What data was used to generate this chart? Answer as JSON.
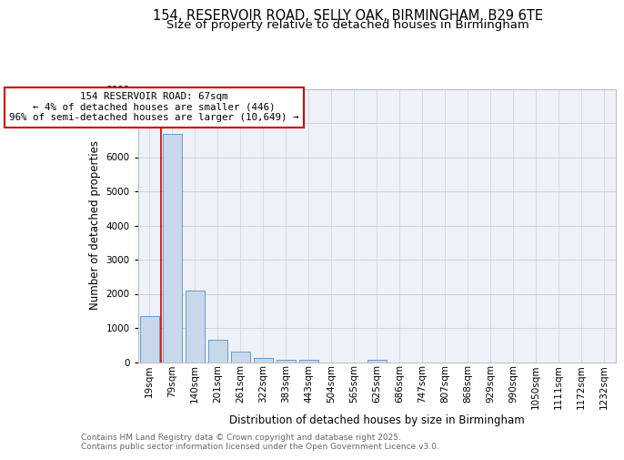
{
  "title1": "154, RESERVOIR ROAD, SELLY OAK, BIRMINGHAM, B29 6TE",
  "title2": "Size of property relative to detached houses in Birmingham",
  "xlabel": "Distribution of detached houses by size in Birmingham",
  "ylabel": "Number of detached properties",
  "bar_labels": [
    "19sqm",
    "79sqm",
    "140sqm",
    "201sqm",
    "261sqm",
    "322sqm",
    "383sqm",
    "443sqm",
    "504sqm",
    "565sqm",
    "625sqm",
    "686sqm",
    "747sqm",
    "807sqm",
    "868sqm",
    "929sqm",
    "990sqm",
    "1050sqm",
    "1111sqm",
    "1172sqm",
    "1232sqm"
  ],
  "bar_values": [
    1350,
    6680,
    2100,
    650,
    300,
    130,
    80,
    70,
    0,
    0,
    70,
    0,
    0,
    0,
    0,
    0,
    0,
    0,
    0,
    0,
    0
  ],
  "bar_color": "#c8d8ea",
  "bar_edge_color": "#6699cc",
  "vline_x_bar_idx": 1,
  "vline_color": "#cc0000",
  "annotation_text": "154 RESERVOIR ROAD: 67sqm\n← 4% of detached houses are smaller (446)\n96% of semi-detached houses are larger (10,649) →",
  "annotation_box_color": "white",
  "annotation_box_edge": "#cc0000",
  "ylim": [
    0,
    8000
  ],
  "yticks": [
    0,
    1000,
    2000,
    3000,
    4000,
    5000,
    6000,
    7000,
    8000
  ],
  "grid_color": "#c8d0dc",
  "background_color": "#eef2f8",
  "footer_text": "Contains HM Land Registry data © Crown copyright and database right 2025.\nContains public sector information licensed under the Open Government Licence v3.0.",
  "title_fontsize": 10.5,
  "subtitle_fontsize": 9.5,
  "axis_label_fontsize": 8.5,
  "tick_fontsize": 7.5,
  "annotation_fontsize": 7.8,
  "footer_fontsize": 6.5
}
